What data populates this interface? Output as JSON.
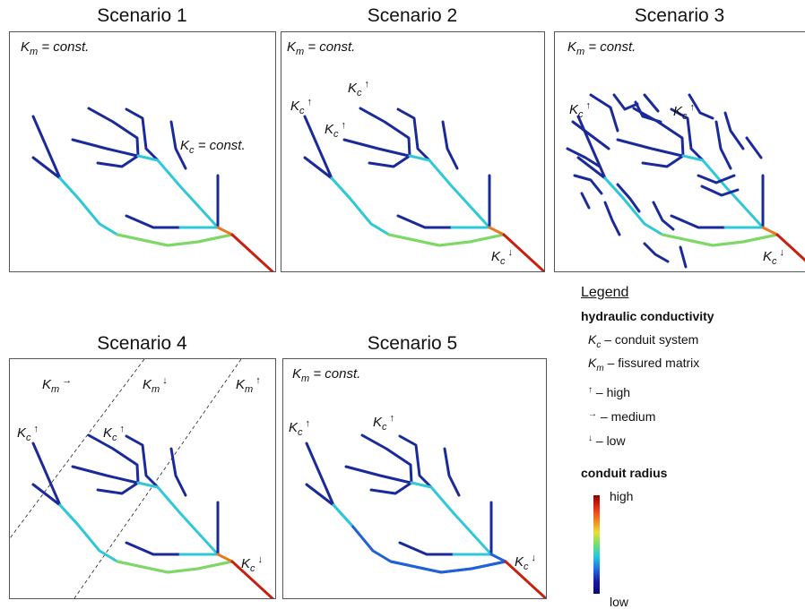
{
  "titles": [
    "Scenario 1",
    "Scenario 2",
    "Scenario 3",
    "Scenario 4",
    "Scenario 5"
  ],
  "km_const": "K",
  "km_const_sub": "m",
  "km_const_tail": "= const.",
  "kc_letter": "K",
  "kc_sub": "c",
  "km_sub": "m",
  "kc_const_tail": "= const.",
  "arrows": {
    "high": "↑",
    "medium": "→",
    "low": "↓"
  },
  "legend": {
    "title": "Legend",
    "heading_hc": "hydraulic conductivity",
    "kc_desc": "– conduit system",
    "km_desc": "– fissured matrix",
    "high": "– high",
    "medium": "– medium",
    "low": "– low",
    "heading_radius": "conduit radius",
    "scale_high": "high",
    "scale_low": "low"
  },
  "colors": {
    "dark_blue": "#1a2a9a",
    "blue": "#2060d8",
    "cyan": "#30c8d8",
    "green": "#80d860",
    "yellow": "#e8d830",
    "orange": "#e87820",
    "red": "#c82010"
  }
}
